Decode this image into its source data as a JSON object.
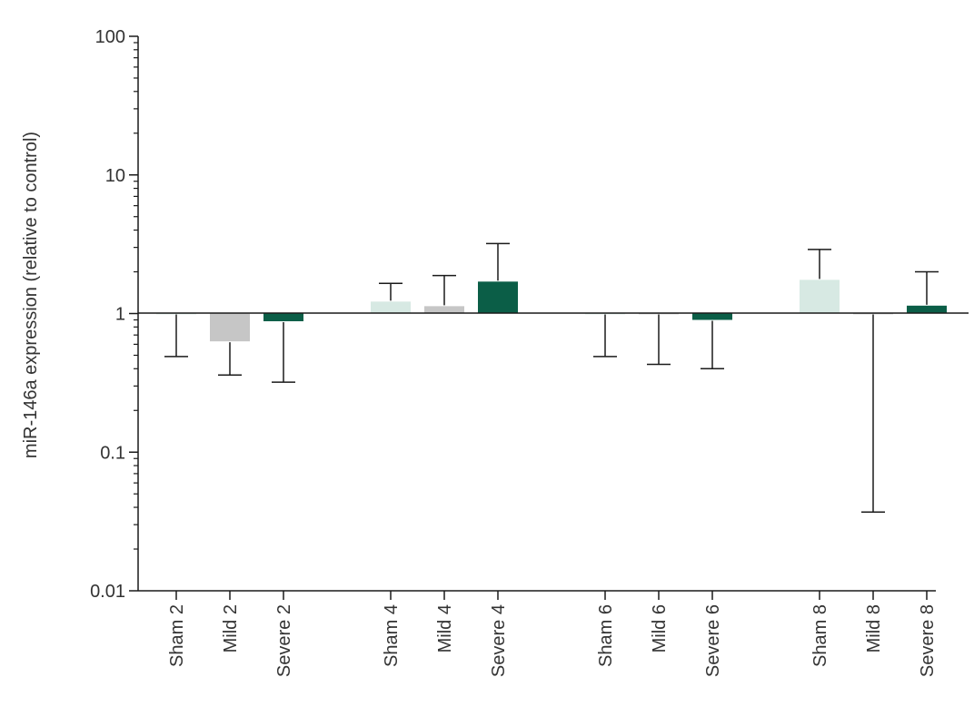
{
  "chart_data": {
    "type": "bar",
    "title": "",
    "xlabel": "",
    "ylabel": "miR-146a expression (relative to control)",
    "yscale": "log",
    "ylim": [
      0.01,
      100
    ],
    "baseline": 1,
    "yticks": [
      {
        "value": 0.01,
        "label": "0.01"
      },
      {
        "value": 0.1,
        "label": "0.1"
      },
      {
        "value": 1,
        "label": "1"
      },
      {
        "value": 10,
        "label": "10"
      },
      {
        "value": 100,
        "label": "100"
      }
    ],
    "grid": false,
    "legend": "none",
    "categories": [
      "Sham 2",
      "Mild 2",
      "Severe 2",
      "Sham 4",
      "Mild 4",
      "Severe 4",
      "Sham 6",
      "Mild 6",
      "Severe 6",
      "Sham 8",
      "Mild 8",
      "Severe 8"
    ],
    "groups": [
      2,
      4,
      6,
      8
    ],
    "values": [
      1.0,
      0.63,
      0.88,
      1.22,
      1.13,
      1.7,
      1.0,
      1.0,
      0.9,
      1.75,
      1.0,
      1.14
    ],
    "error_bound": [
      0.49,
      0.36,
      0.32,
      1.65,
      1.88,
      3.2,
      0.49,
      0.43,
      0.4,
      2.9,
      0.037,
      2.0
    ],
    "colors": [
      "#d7e9e3",
      "#c6c6c6",
      "#0b5e47",
      "#d7e9e3",
      "#c6c6c6",
      "#0b5e47",
      "#d7e9e3",
      "#c6c6c6",
      "#0b5e47",
      "#d7e9e3",
      "#c6c6c6",
      "#0b5e47"
    ]
  }
}
